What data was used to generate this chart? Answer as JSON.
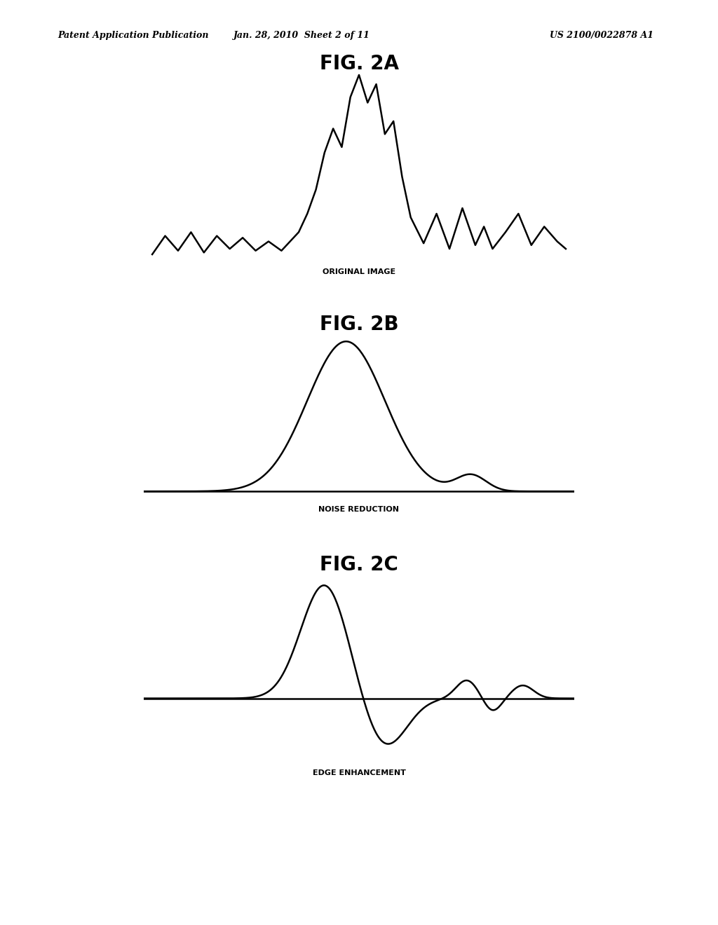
{
  "bg_color": "#ffffff",
  "text_color": "#000000",
  "header_left": "Patent Application Publication",
  "header_center": "Jan. 28, 2010  Sheet 2 of 11",
  "header_right": "US 2100/0022878 A1",
  "fig_titles": [
    "FIG. 2A",
    "FIG. 2B",
    "FIG. 2C"
  ],
  "fig_labels": [
    "ORIGINAL IMAGE",
    "NOISE REDUCTION",
    "EDGE ENHANCEMENT"
  ],
  "line_color": "#000000",
  "line_width": 1.8,
  "header_fontsize": 9,
  "title_fontsize": 20,
  "label_fontsize": 8
}
